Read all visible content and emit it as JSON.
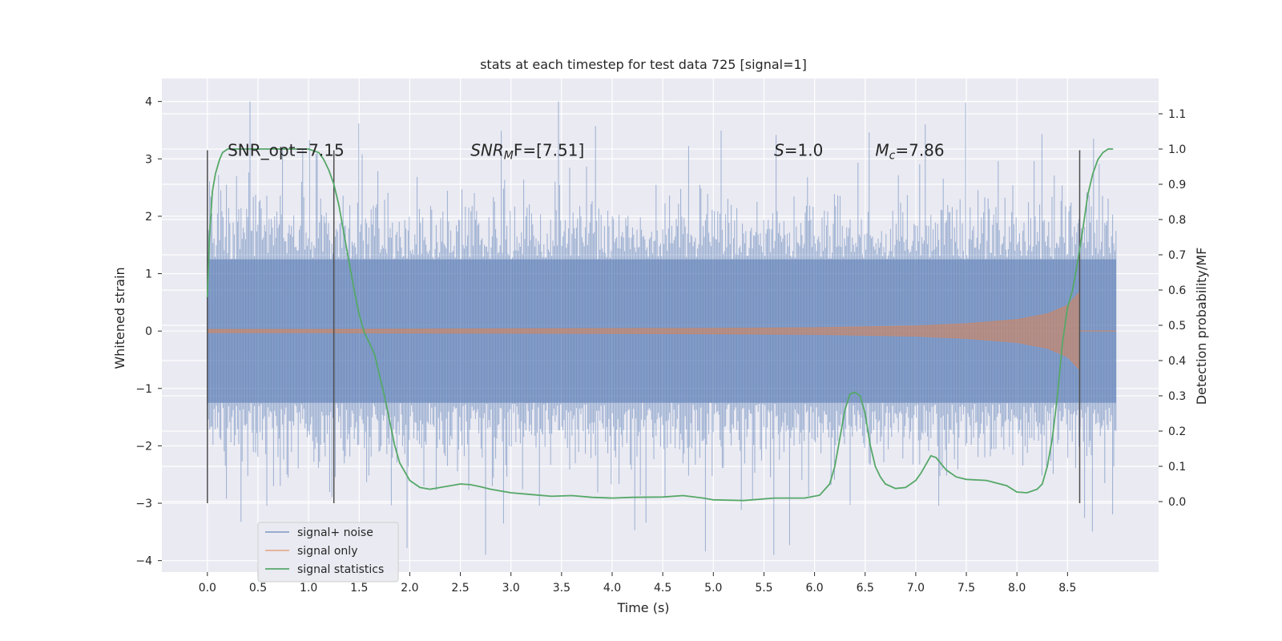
{
  "chart_data": {
    "type": "line",
    "title": "stats at each timestep for test data 725 [signal=1]",
    "xlabel": "Time (s)",
    "ylabel_left": "Whitened strain",
    "ylabel_right": "Detection probability/MF",
    "xlim": [
      -0.45,
      9.4
    ],
    "ylim_left": [
      -4.2,
      4.4
    ],
    "ylim_right": [
      -0.2,
      1.2
    ],
    "x_ticks": [
      "0.0",
      "0.5",
      "1.0",
      "1.5",
      "2.0",
      "2.5",
      "3.0",
      "3.5",
      "4.0",
      "4.5",
      "5.0",
      "5.5",
      "6.0",
      "6.5",
      "7.0",
      "7.5",
      "8.0",
      "8.5"
    ],
    "y_left_ticks": [
      "4",
      "3",
      "2",
      "1",
      "0",
      "−1",
      "−2",
      "−3",
      "−4"
    ],
    "y_right_ticks": [
      "1.1",
      "1.0",
      "0.9",
      "0.8",
      "0.7",
      "0.6",
      "0.5",
      "0.4",
      "0.3",
      "0.2",
      "0.1",
      "0.0"
    ],
    "grid": true,
    "annotations": [
      {
        "text": "SNR_opt=7.15",
        "x": 0.2,
        "y": 3.15
      },
      {
        "text_parts": [
          "SNR",
          "M",
          "F=[7.51]"
        ],
        "x": 2.6,
        "y": 3.15
      },
      {
        "text_parts": [
          "S",
          "=1.0"
        ],
        "x": 5.6,
        "y": 3.15
      },
      {
        "text_parts": [
          "M",
          "c",
          "=7.86"
        ],
        "x": 6.6,
        "y": 3.15
      }
    ],
    "vertical_markers": [
      {
        "x": 0.0,
        "y_range": [
          -3.0,
          3.15
        ]
      },
      {
        "x": 1.25,
        "y_range": [
          -3.0,
          3.15
        ]
      },
      {
        "x": 8.62,
        "y_range": [
          -3.0,
          3.15
        ]
      }
    ],
    "noise": {
      "x_range": [
        0.0,
        8.98
      ],
      "core_amplitude": 1.25,
      "spike_seed": 725,
      "color": "#4c72b0"
    },
    "series": [
      {
        "name": "signal+ noise",
        "color": "#4c72b0",
        "axis": "left"
      },
      {
        "name": "signal only",
        "color": "#dd8452",
        "axis": "left",
        "envelope": {
          "x": [
            0.0,
            1.0,
            2.0,
            3.0,
            4.0,
            5.0,
            6.0,
            7.0,
            7.5,
            8.0,
            8.3,
            8.5,
            8.62
          ],
          "amp": [
            0.03,
            0.03,
            0.035,
            0.04,
            0.045,
            0.05,
            0.06,
            0.09,
            0.13,
            0.2,
            0.3,
            0.45,
            0.68
          ]
        }
      },
      {
        "name": "signal statistics",
        "color": "#55a868",
        "axis": "right",
        "x": [
          0.0,
          0.02,
          0.05,
          0.08,
          0.12,
          0.15,
          0.2,
          0.3,
          0.5,
          0.7,
          0.9,
          1.0,
          1.1,
          1.15,
          1.2,
          1.25,
          1.3,
          1.35,
          1.4,
          1.45,
          1.5,
          1.55,
          1.6,
          1.65,
          1.7,
          1.75,
          1.8,
          1.85,
          1.9,
          2.0,
          2.1,
          2.2,
          2.3,
          2.4,
          2.5,
          2.6,
          2.7,
          2.8,
          3.0,
          3.2,
          3.4,
          3.6,
          3.8,
          4.0,
          4.2,
          4.5,
          4.7,
          4.9,
          5.0,
          5.3,
          5.6,
          5.9,
          6.05,
          6.15,
          6.2,
          6.25,
          6.3,
          6.35,
          6.4,
          6.45,
          6.5,
          6.55,
          6.6,
          6.65,
          6.7,
          6.8,
          6.9,
          7.0,
          7.05,
          7.1,
          7.15,
          7.2,
          7.3,
          7.4,
          7.5,
          7.7,
          7.9,
          8.0,
          8.1,
          8.2,
          8.25,
          8.3,
          8.35,
          8.4,
          8.45,
          8.5,
          8.55,
          8.6,
          8.65,
          8.7,
          8.75,
          8.8,
          8.85,
          8.9,
          8.95
        ],
        "y": [
          0.58,
          0.75,
          0.88,
          0.93,
          0.97,
          0.99,
          1.0,
          1.0,
          1.0,
          1.0,
          1.0,
          1.0,
          0.99,
          0.97,
          0.94,
          0.9,
          0.84,
          0.76,
          0.68,
          0.6,
          0.53,
          0.48,
          0.45,
          0.42,
          0.36,
          0.3,
          0.23,
          0.16,
          0.11,
          0.06,
          0.04,
          0.035,
          0.04,
          0.045,
          0.05,
          0.048,
          0.042,
          0.035,
          0.025,
          0.02,
          0.015,
          0.017,
          0.012,
          0.01,
          0.012,
          0.013,
          0.017,
          0.01,
          0.005,
          0.003,
          0.01,
          0.01,
          0.018,
          0.05,
          0.1,
          0.18,
          0.26,
          0.305,
          0.31,
          0.3,
          0.25,
          0.16,
          0.1,
          0.07,
          0.05,
          0.037,
          0.04,
          0.06,
          0.08,
          0.105,
          0.13,
          0.125,
          0.09,
          0.07,
          0.063,
          0.06,
          0.045,
          0.027,
          0.025,
          0.035,
          0.05,
          0.1,
          0.18,
          0.3,
          0.45,
          0.55,
          0.6,
          0.68,
          0.77,
          0.87,
          0.93,
          0.97,
          0.99,
          1.0,
          1.0
        ]
      }
    ],
    "legend": {
      "location": "lower-left"
    }
  }
}
